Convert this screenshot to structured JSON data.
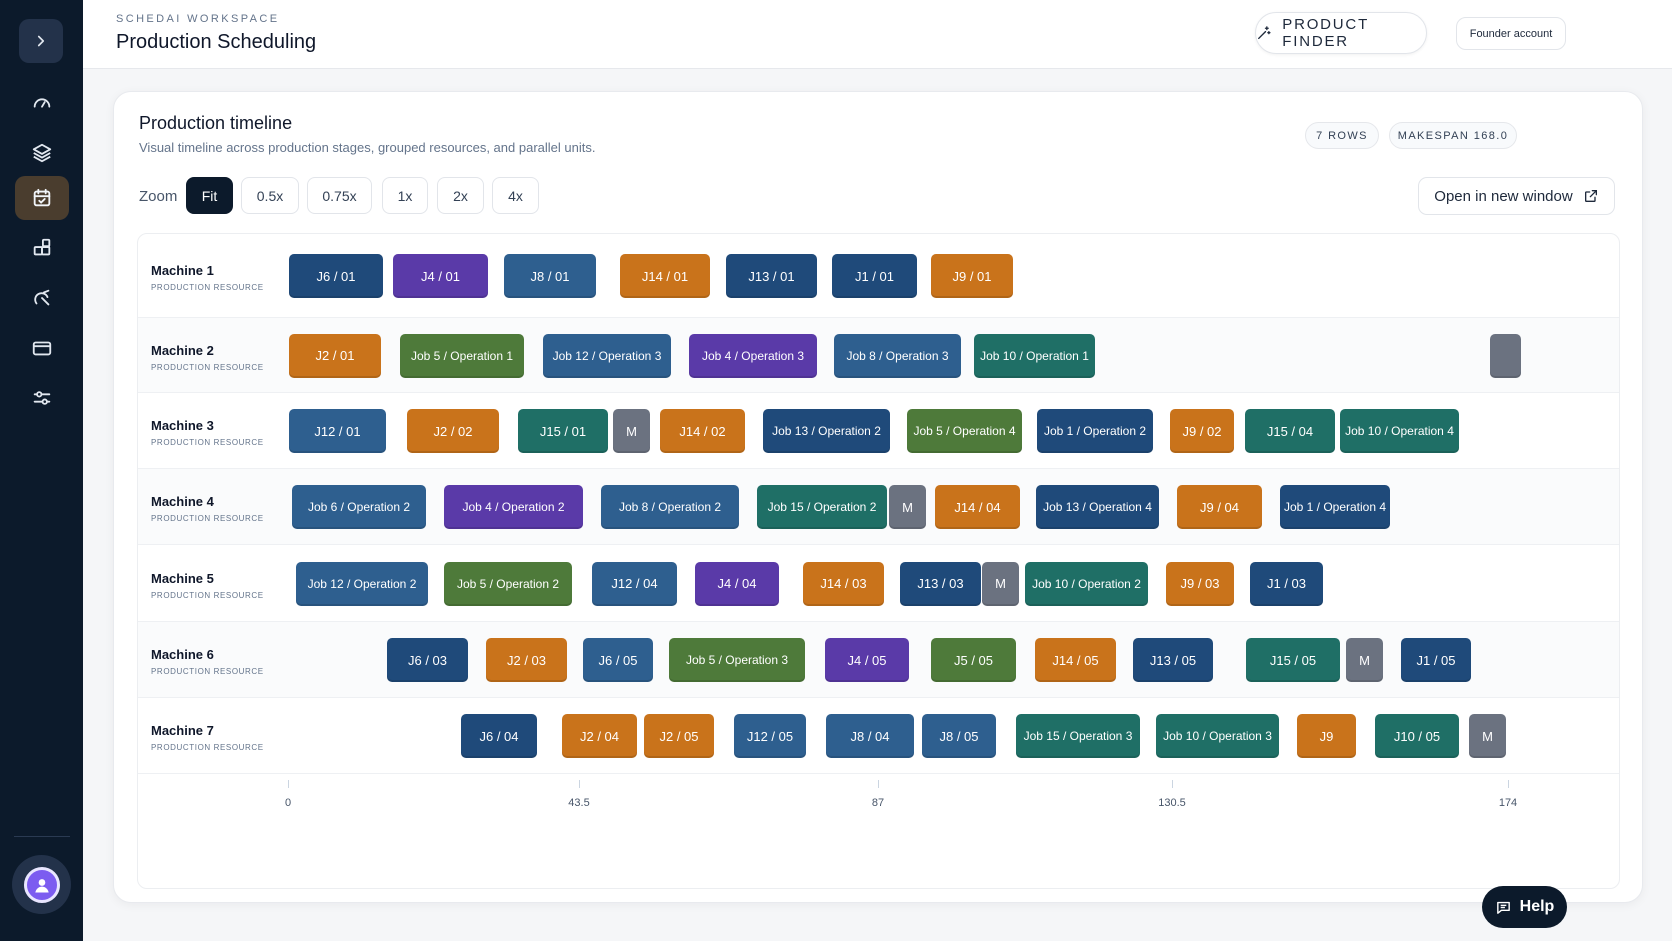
{
  "sidebar": {
    "toggle_icon": "chevron-right-icon",
    "items": [
      {
        "name": "gauge-icon",
        "active": false
      },
      {
        "name": "layers-icon",
        "active": false
      },
      {
        "name": "calendar-icon",
        "active": true
      },
      {
        "name": "blocks-icon",
        "active": false
      },
      {
        "name": "chart-icon",
        "active": false
      },
      {
        "name": "card-icon",
        "active": false
      },
      {
        "name": "sliders-icon",
        "active": false
      }
    ],
    "avatar_icon": "user-icon"
  },
  "header": {
    "eyebrow": "SCHEDAI WORKSPACE",
    "title": "Production Scheduling",
    "product_finder": "PRODUCT FINDER",
    "account": "Founder account"
  },
  "card": {
    "title": "Production timeline",
    "subtitle": "Visual timeline across production stages, grouped resources, and parallel units.",
    "rows_pill": "7 ROWS",
    "makespan_pill": "MAKESPAN 168.0",
    "zoom_label": "Zoom",
    "zoom_options": [
      "Fit",
      "0.5x",
      "0.75x",
      "1x",
      "2x",
      "4x"
    ],
    "zoom_selected": "Fit",
    "open_window": "Open in new window"
  },
  "colors": {
    "navy": "#1f4a7a",
    "purple": "#5a3aa8",
    "steel": "#2e5f8f",
    "orange": "#c9731b",
    "olive": "#4e7a3a",
    "teal": "#1f6f66",
    "gray": "#6b7280"
  },
  "timeline": {
    "row_sub": "PRODUCTION RESOURCE",
    "axis_labels": [
      "0",
      "43.5",
      "87",
      "130.5",
      "174"
    ],
    "rows": [
      {
        "name": "Machine 1",
        "blocks": [
          {
            "label": "J6 / 01",
            "color": "navy"
          },
          {
            "label": "J4 / 01",
            "color": "purple"
          },
          {
            "label": "J8 / 01",
            "color": "steel"
          },
          {
            "label": "J14 / 01",
            "color": "orange"
          },
          {
            "label": "J13 / 01",
            "color": "navy"
          },
          {
            "label": "J1 / 01",
            "color": "navy"
          },
          {
            "label": "J9 / 01",
            "color": "orange"
          }
        ]
      },
      {
        "name": "Machine 2",
        "blocks": [
          {
            "label": "J2 / 01",
            "color": "orange"
          },
          {
            "label": "Job 5 / Operation 1",
            "color": "olive"
          },
          {
            "label": "Job 12 / Operation 3",
            "color": "steel"
          },
          {
            "label": "Job 4 / Operation 3",
            "color": "purple"
          },
          {
            "label": "Job 8 / Operation 3",
            "color": "steel"
          },
          {
            "label": "Job 10 / Operation 1",
            "color": "teal"
          },
          {
            "label": "",
            "color": "gray"
          }
        ]
      },
      {
        "name": "Machine 3",
        "blocks": [
          {
            "label": "J12 / 01",
            "color": "steel"
          },
          {
            "label": "J2 / 02",
            "color": "orange"
          },
          {
            "label": "J15 / 01",
            "color": "teal"
          },
          {
            "label": "M",
            "color": "gray"
          },
          {
            "label": "J14 / 02",
            "color": "orange"
          },
          {
            "label": "Job 13 / Operation 2",
            "color": "navy"
          },
          {
            "label": "Job 5 / Operation 4",
            "color": "olive"
          },
          {
            "label": "Job 1 / Operation 2",
            "color": "navy"
          },
          {
            "label": "J9 / 02",
            "color": "orange"
          },
          {
            "label": "J15 / 04",
            "color": "teal"
          },
          {
            "label": "Job 10 / Operation 4",
            "color": "teal"
          }
        ]
      },
      {
        "name": "Machine 4",
        "blocks": [
          {
            "label": "Job 6 / Operation 2",
            "color": "steel"
          },
          {
            "label": "Job 4 / Operation 2",
            "color": "purple"
          },
          {
            "label": "Job 8 / Operation 2",
            "color": "steel"
          },
          {
            "label": "Job 15 / Operation 2",
            "color": "teal"
          },
          {
            "label": "M",
            "color": "gray"
          },
          {
            "label": "J14 / 04",
            "color": "orange"
          },
          {
            "label": "Job 13 / Operation 4",
            "color": "navy"
          },
          {
            "label": "J9 / 04",
            "color": "orange"
          },
          {
            "label": "Job 1 / Operation 4",
            "color": "navy"
          }
        ]
      },
      {
        "name": "Machine 5",
        "blocks": [
          {
            "label": "Job 12 / Operation 2",
            "color": "steel"
          },
          {
            "label": "Job 5 / Operation 2",
            "color": "olive"
          },
          {
            "label": "J12 / 04",
            "color": "steel"
          },
          {
            "label": "J4 / 04",
            "color": "purple"
          },
          {
            "label": "J14 / 03",
            "color": "orange"
          },
          {
            "label": "J13 / 03",
            "color": "navy"
          },
          {
            "label": "M",
            "color": "gray"
          },
          {
            "label": "Job 10 / Operation 2",
            "color": "teal"
          },
          {
            "label": "J9 / 03",
            "color": "orange"
          },
          {
            "label": "J1 / 03",
            "color": "navy"
          }
        ]
      },
      {
        "name": "Machine 6",
        "blocks": [
          {
            "label": "J6 / 03",
            "color": "navy"
          },
          {
            "label": "J2 / 03",
            "color": "orange"
          },
          {
            "label": "J6 / 05",
            "color": "steel"
          },
          {
            "label": "Job 5 / Operation 3",
            "color": "olive"
          },
          {
            "label": "J4 / 05",
            "color": "purple"
          },
          {
            "label": "J5 / 05",
            "color": "olive"
          },
          {
            "label": "J14 / 05",
            "color": "orange"
          },
          {
            "label": "J13 / 05",
            "color": "navy"
          },
          {
            "label": "J15 / 05",
            "color": "teal"
          },
          {
            "label": "M",
            "color": "gray"
          },
          {
            "label": "J1 / 05",
            "color": "navy"
          }
        ]
      },
      {
        "name": "Machine 7",
        "blocks": [
          {
            "label": "J6 / 04",
            "color": "navy"
          },
          {
            "label": "J2 / 04",
            "color": "orange"
          },
          {
            "label": "J2 / 05",
            "color": "orange"
          },
          {
            "label": "J12 / 05",
            "color": "steel"
          },
          {
            "label": "J8 / 04",
            "color": "steel"
          },
          {
            "label": "J8 / 05",
            "color": "steel"
          },
          {
            "label": "Job 15 / Operation 3",
            "color": "teal"
          },
          {
            "label": "Job 10 / Operation 3",
            "color": "teal"
          },
          {
            "label": "J9",
            "color": "orange"
          },
          {
            "label": "J10 / 05",
            "color": "teal"
          },
          {
            "label": "M",
            "color": "gray"
          }
        ]
      }
    ]
  },
  "help": "Help"
}
